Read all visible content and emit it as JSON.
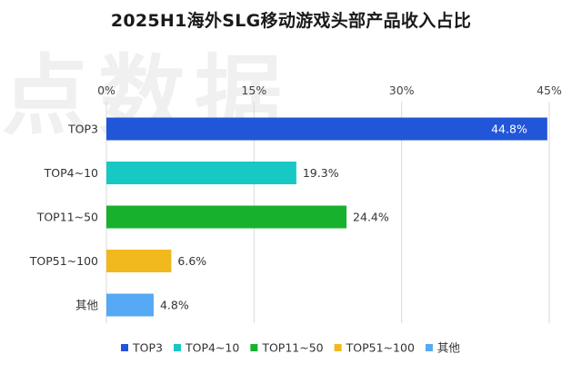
{
  "chart_data": {
    "type": "bar",
    "orientation": "horizontal",
    "title": "2025H1海外SLG移动游戏头部产品收入占比",
    "categories": [
      "TOP3",
      "TOP4~10",
      "TOP11~50",
      "TOP51~100",
      "其他"
    ],
    "values": [
      44.8,
      19.3,
      24.4,
      6.6,
      4.8
    ],
    "data_labels": [
      "44.8%",
      "19.3%",
      "24.4%",
      "6.6%",
      "4.8%"
    ],
    "colors": [
      "#2156D9",
      "#17C8C4",
      "#17B12E",
      "#F2B91E",
      "#55A9F5"
    ],
    "xlim": [
      0,
      45
    ],
    "xticks": [
      0,
      15,
      30,
      45
    ],
    "xtick_labels": [
      "0%",
      "15%",
      "30%",
      "45%"
    ],
    "axis_position": "top",
    "grid": true,
    "legend": {
      "position": "bottom",
      "entries": [
        "TOP3",
        "TOP4~10",
        "TOP11~50",
        "TOP51~100",
        "其他"
      ]
    }
  },
  "watermark": "点数据"
}
